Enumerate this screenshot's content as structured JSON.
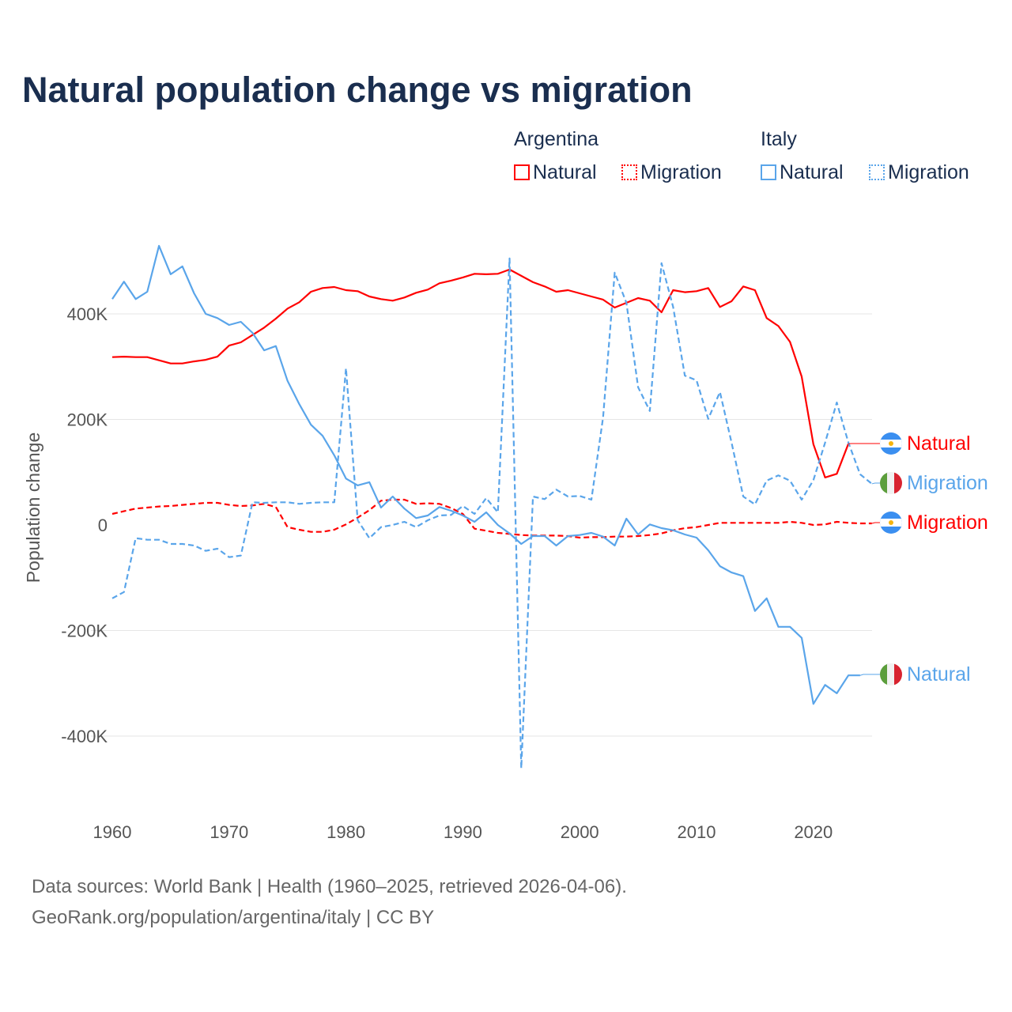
{
  "title": "Natural population change vs migration",
  "legend": {
    "groups": [
      {
        "name": "Argentina",
        "items": [
          {
            "label": "Natural",
            "style": "solid"
          },
          {
            "label": "Migration",
            "style": "dotted"
          }
        ],
        "color": "#ff0000"
      },
      {
        "name": "Italy",
        "items": [
          {
            "label": "Natural",
            "style": "solid"
          },
          {
            "label": "Migration",
            "style": "dotted"
          }
        ],
        "color": "#5aa5ea"
      }
    ]
  },
  "footer": {
    "line1": "Data sources: World Bank | Health (1960–2025, retrieved 2026-04-06).",
    "line2": "GeoRank.org/population/argentina/italy | CC BY"
  },
  "chart_data": {
    "type": "line",
    "title": "Natural population change vs migration",
    "xlabel": "",
    "ylabel": "Population change",
    "xlim": [
      1960,
      2025
    ],
    "ylim": [
      -470,
      540
    ],
    "y_unit": "thousands",
    "xticks": [
      "1960",
      "1970",
      "1980",
      "1990",
      "2000",
      "2010",
      "2020"
    ],
    "yticks": [
      {
        "v": 400,
        "label": "400K"
      },
      {
        "v": 200,
        "label": "200K"
      },
      {
        "v": 0,
        "label": "0"
      },
      {
        "v": -200,
        "label": "-200K"
      },
      {
        "v": -400,
        "label": "-400K"
      }
    ],
    "grid": true,
    "series": [
      {
        "name": "Argentina Natural",
        "end_label": "Natural",
        "country": "Argentina",
        "color": "#ff0000",
        "dash": false,
        "start": 1960,
        "values": [
          318,
          319,
          318,
          318,
          312,
          306,
          306,
          310,
          313,
          319,
          340,
          346,
          360,
          374,
          391,
          410,
          422,
          442,
          449,
          451,
          445,
          443,
          433,
          428,
          425,
          431,
          440,
          446,
          458,
          463,
          469,
          476,
          475,
          476,
          484,
          472,
          460,
          452,
          442,
          445,
          439,
          433,
          427,
          412,
          421,
          430,
          425,
          403,
          445,
          441,
          443,
          449,
          413,
          424,
          452,
          445,
          392,
          377,
          347,
          281,
          153,
          90,
          97,
          154
        ]
      },
      {
        "name": "Argentina Migration",
        "end_label": "Migration",
        "country": "Argentina",
        "color": "#ff0000",
        "dash": true,
        "start": 1960,
        "values": [
          21,
          26,
          31,
          33,
          35,
          36,
          38,
          40,
          42,
          42,
          38,
          36,
          37,
          40,
          34,
          -4,
          -9,
          -13,
          -13,
          -9,
          1,
          14,
          28,
          46,
          48,
          48,
          40,
          41,
          40,
          32,
          21,
          -7,
          -11,
          -15,
          -17,
          -19,
          -20,
          -20,
          -20,
          -21,
          -24,
          -23,
          -23,
          -22,
          -22,
          -21,
          -19,
          -16,
          -10,
          -6,
          -4,
          0,
          4,
          4,
          4,
          4,
          4,
          4,
          6,
          4,
          0,
          1,
          6,
          4,
          3,
          3
        ]
      },
      {
        "name": "Italy Natural",
        "end_label": "Natural",
        "country": "Italy",
        "color": "#5aa5ea",
        "dash": false,
        "start": 1960,
        "values": [
          428,
          461,
          428,
          442,
          529,
          475,
          490,
          439,
          400,
          392,
          379,
          385,
          364,
          331,
          339,
          273,
          229,
          190,
          169,
          132,
          88,
          75,
          81,
          33,
          54,
          31,
          13,
          18,
          34,
          27,
          18,
          6,
          24,
          0,
          -16,
          -36,
          -21,
          -21,
          -39,
          -21,
          -19,
          -15,
          -22,
          -39,
          12,
          -18,
          1,
          -6,
          -10,
          -18,
          -24,
          -48,
          -78,
          -90,
          -97,
          -163,
          -139,
          -193,
          -193,
          -214,
          -339,
          -303,
          -319,
          -285,
          -285
        ]
      },
      {
        "name": "Italy Migration",
        "end_label": "Migration",
        "country": "Italy",
        "color": "#5aa5ea",
        "dash": true,
        "start": 1960,
        "values": [
          -139,
          -127,
          -25,
          -28,
          -28,
          -36,
          -36,
          -39,
          -49,
          -45,
          -61,
          -58,
          43,
          42,
          43,
          43,
          40,
          42,
          43,
          43,
          297,
          9,
          -25,
          -4,
          0,
          6,
          -4,
          9,
          18,
          19,
          36,
          21,
          51,
          24,
          505,
          -461,
          54,
          49,
          67,
          54,
          55,
          48,
          204,
          478,
          421,
          261,
          216,
          496,
          413,
          283,
          274,
          201,
          252,
          156,
          54,
          39,
          84,
          94,
          84,
          48,
          85,
          156,
          232,
          156,
          96,
          78
        ]
      }
    ]
  }
}
